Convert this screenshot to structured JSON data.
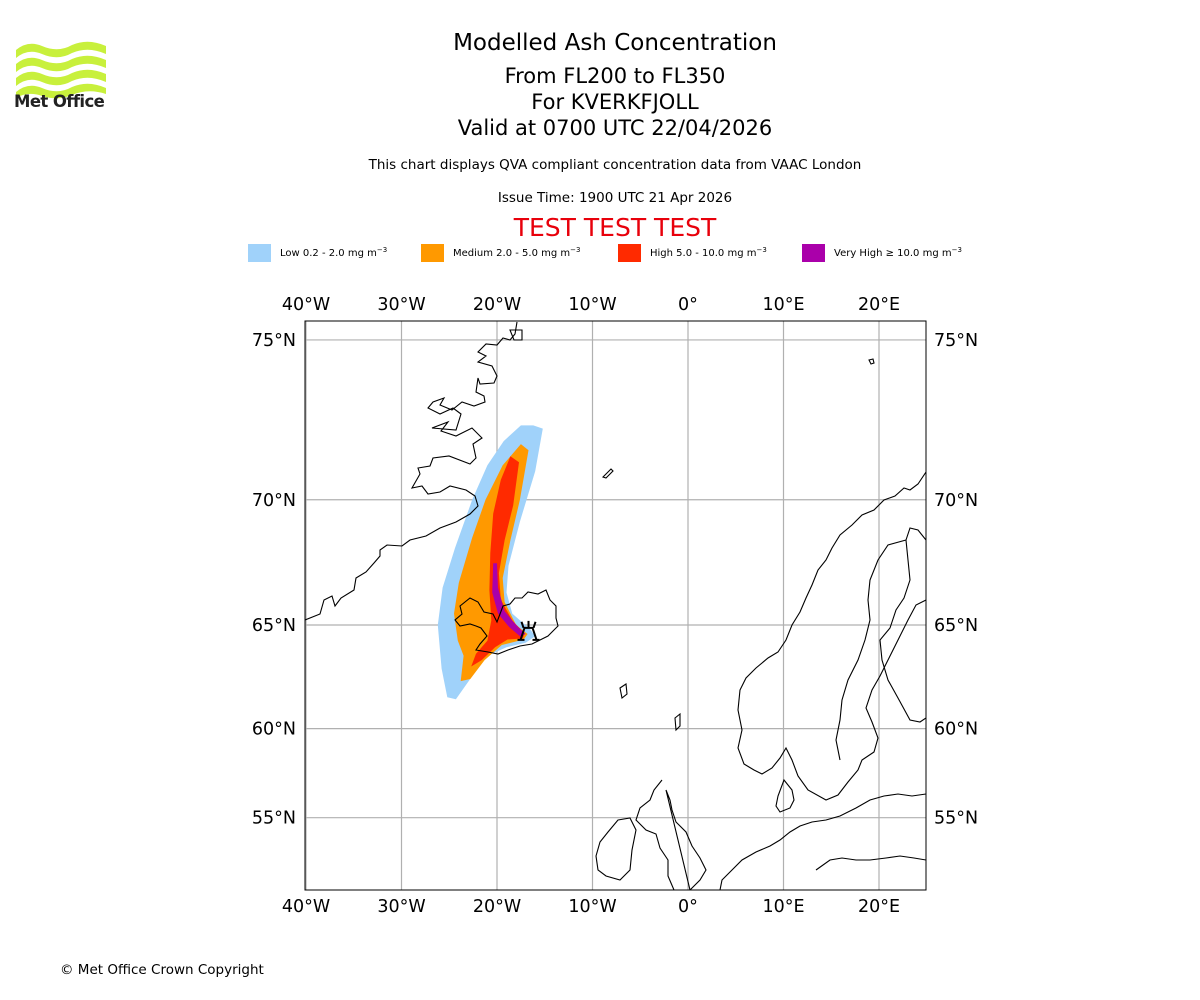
{
  "brand": {
    "logo_text": "Met Office",
    "logo_color": "#c8f03c"
  },
  "header": {
    "title": "Modelled Ash Concentration",
    "levels": "From FL200 to FL350",
    "volcano": "For KVERKFJOLL",
    "valid": "Valid at 0700 UTC 22/04/2026",
    "subtitle": "This chart displays QVA compliant concentration data from VAAC London",
    "issue_time": "Issue Time: 1900 UTC 21 Apr 2026",
    "test_banner": "TEST TEST TEST",
    "test_color": "#e8000b"
  },
  "legend": [
    {
      "label": "Low 0.2 - 2.0 mg m",
      "sup": "−3",
      "color": "#a0d2fa"
    },
    {
      "label": "Medium 2.0 - 5.0 mg m",
      "sup": "−3",
      "color": "#ff9900"
    },
    {
      "label": "High 5.0 - 10.0 mg m",
      "sup": "−3",
      "color": "#ff2a00"
    },
    {
      "label": "Very High ≥ 10.0 mg m",
      "sup": "−3",
      "color": "#aa00aa"
    }
  ],
  "map": {
    "projection": "Mercator",
    "lon_range": [
      -40.2,
      24.8
    ],
    "lat_range": [
      51.5,
      76.2
    ],
    "lon_ticks": [
      {
        "value": -40,
        "label": "40°W"
      },
      {
        "value": -30,
        "label": "30°W"
      },
      {
        "value": -20,
        "label": "20°W"
      },
      {
        "value": -10,
        "label": "10°W"
      },
      {
        "value": 0,
        "label": "0°"
      },
      {
        "value": 10,
        "label": "10°E"
      },
      {
        "value": 20,
        "label": "20°E"
      }
    ],
    "lat_ticks": [
      {
        "value": 75,
        "label": "75°N"
      },
      {
        "value": 70,
        "label": "70°N"
      },
      {
        "value": 65,
        "label": "65°N"
      },
      {
        "value": 60,
        "label": "60°N"
      },
      {
        "value": 55,
        "label": "55°N"
      }
    ],
    "gridlines": true,
    "volcano": {
      "name": "KVERKFJOLL",
      "lon": -16.7,
      "lat": 64.65,
      "symbol": "volcano-icon"
    },
    "ash_plume": {
      "low": [
        [
          -16.2,
          72.5
        ],
        [
          -15.2,
          72.4
        ],
        [
          -16.0,
          71.0
        ],
        [
          -17.6,
          69.2
        ],
        [
          -18.8,
          67.5
        ],
        [
          -19.0,
          66.4
        ],
        [
          -18.4,
          65.5
        ],
        [
          -16.5,
          64.8
        ],
        [
          -16.0,
          64.5
        ],
        [
          -17.0,
          64.2
        ],
        [
          -19.0,
          64.0
        ],
        [
          -21.0,
          63.6
        ],
        [
          -22.5,
          62.7
        ],
        [
          -24.3,
          61.5
        ],
        [
          -25.2,
          61.6
        ],
        [
          -25.8,
          63.0
        ],
        [
          -26.2,
          65.0
        ],
        [
          -25.7,
          66.6
        ],
        [
          -24.4,
          68.2
        ],
        [
          -22.6,
          70.0
        ],
        [
          -21.0,
          71.2
        ],
        [
          -19.3,
          72.0
        ],
        [
          -17.5,
          72.5
        ]
      ],
      "medium": [
        [
          -17.5,
          71.9
        ],
        [
          -16.7,
          71.7
        ],
        [
          -17.6,
          70.0
        ],
        [
          -18.6,
          68.5
        ],
        [
          -19.4,
          67.0
        ],
        [
          -19.2,
          66.0
        ],
        [
          -18.0,
          65.0
        ],
        [
          -16.8,
          64.6
        ],
        [
          -17.2,
          64.35
        ],
        [
          -19.5,
          64.1
        ],
        [
          -21.3,
          63.4
        ],
        [
          -22.8,
          62.5
        ],
        [
          -23.8,
          62.4
        ],
        [
          -23.5,
          63.6
        ],
        [
          -24.1,
          64.3
        ],
        [
          -24.5,
          65.5
        ],
        [
          -24.0,
          66.8
        ],
        [
          -22.6,
          68.6
        ],
        [
          -21.2,
          70.0
        ],
        [
          -19.4,
          71.2
        ]
      ],
      "high": [
        [
          -18.6,
          71.5
        ],
        [
          -17.7,
          71.3
        ],
        [
          -18.3,
          69.8
        ],
        [
          -19.2,
          68.5
        ],
        [
          -19.8,
          67.2
        ],
        [
          -19.6,
          66.1
        ],
        [
          -18.4,
          65.2
        ],
        [
          -17.1,
          64.62
        ],
        [
          -17.3,
          64.4
        ],
        [
          -18.9,
          64.35
        ],
        [
          -20.2,
          64.0
        ],
        [
          -21.6,
          63.4
        ],
        [
          -22.7,
          63.1
        ],
        [
          -22.2,
          63.7
        ],
        [
          -21.0,
          64.3
        ],
        [
          -20.6,
          65.2
        ],
        [
          -20.8,
          66.5
        ],
        [
          -20.7,
          68.0
        ],
        [
          -20.4,
          69.5
        ],
        [
          -19.6,
          70.7
        ]
      ],
      "very_high": [
        [
          -20.4,
          67.6
        ],
        [
          -20.0,
          67.6
        ],
        [
          -19.9,
          66.6
        ],
        [
          -19.2,
          65.6
        ],
        [
          -17.9,
          64.95
        ],
        [
          -17.0,
          64.6
        ],
        [
          -17.6,
          64.5
        ],
        [
          -18.7,
          64.9
        ],
        [
          -19.9,
          65.5
        ],
        [
          -20.5,
          66.4
        ]
      ]
    }
  },
  "footer": {
    "copyright": "© Met Office Crown Copyright"
  }
}
